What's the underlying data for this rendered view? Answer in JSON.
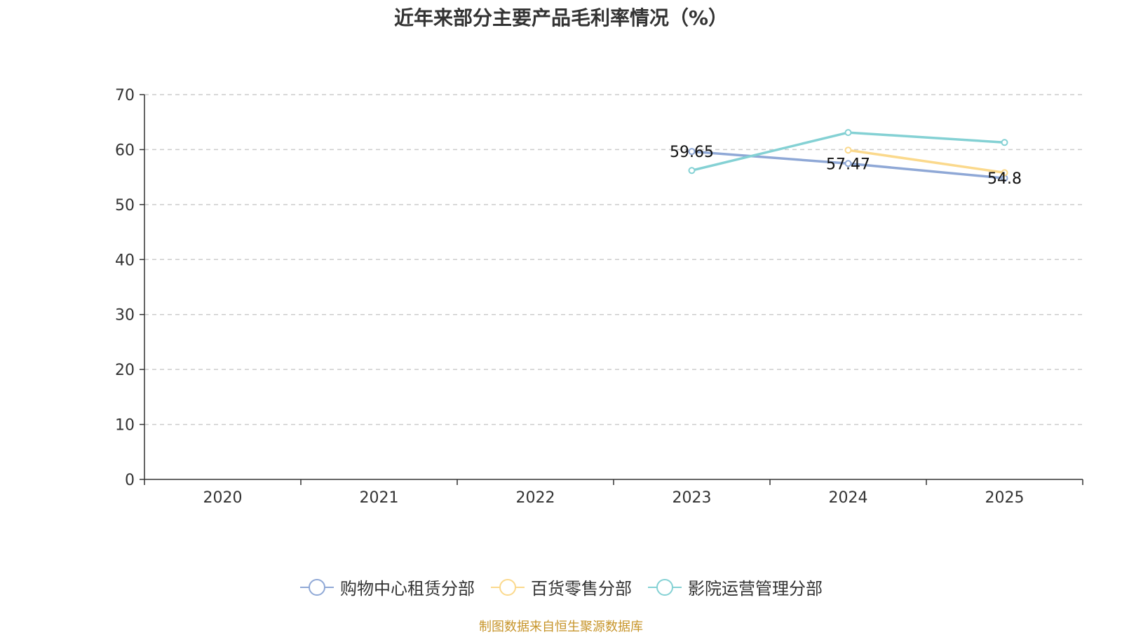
{
  "chart_data": {
    "type": "line",
    "title": "近年来部分主要产品毛利率情况（%）",
    "categories": [
      "2020",
      "2021",
      "2022",
      "2023",
      "2024",
      "2025"
    ],
    "ylim": [
      0,
      70
    ],
    "yticks": [
      0,
      10,
      20,
      30,
      40,
      50,
      60,
      70
    ],
    "grid": true,
    "legend_position": "bottom",
    "series": [
      {
        "name": "购物中心租赁分部",
        "color": "#8fa8d6",
        "values": [
          null,
          null,
          null,
          59.65,
          57.47,
          54.8
        ],
        "labels": [
          null,
          null,
          null,
          "59.65",
          "57.47",
          "54.8"
        ]
      },
      {
        "name": "百货零售分部",
        "color": "#fbd98c",
        "values": [
          null,
          null,
          null,
          null,
          59.9,
          55.8
        ],
        "labels": [
          null,
          null,
          null,
          null,
          null,
          null
        ]
      },
      {
        "name": "影院运营管理分部",
        "color": "#84d1d4",
        "values": [
          null,
          null,
          null,
          56.2,
          63.1,
          61.3
        ],
        "labels": [
          null,
          null,
          null,
          null,
          null,
          null
        ]
      }
    ]
  },
  "source_note": "制图数据来自恒生聚源数据库"
}
